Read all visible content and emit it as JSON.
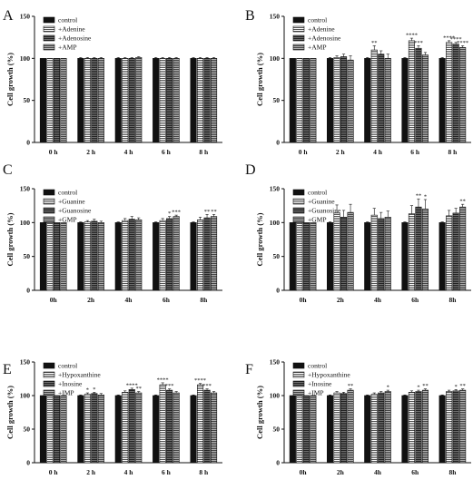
{
  "patterns": {
    "colors": [
      "#111111",
      "#ffffff",
      "#6e6e6e",
      "#b0b0b0"
    ],
    "stripe_colors": [
      null,
      "#555555",
      "#222222",
      "#444444"
    ]
  },
  "chart_data": [
    {
      "panel": "A",
      "type": "bar",
      "ylabel": "Cell growth (%)",
      "ylim": [
        0,
        150
      ],
      "yticks": [
        0,
        50,
        100,
        150
      ],
      "legend_position": "top-left",
      "categories": [
        "0 h",
        "2 h",
        "4 h",
        "6 h",
        "8 h"
      ],
      "series": [
        {
          "name": "control",
          "values": [
            100,
            100,
            100,
            100,
            100
          ],
          "errors": [
            0,
            1,
            1,
            1,
            1
          ],
          "sig": [
            "",
            "",
            "",
            "",
            ""
          ]
        },
        {
          "name": "+Adenine",
          "values": [
            100,
            100,
            100,
            100,
            100
          ],
          "errors": [
            0,
            1,
            1,
            1,
            1
          ],
          "sig": [
            "",
            "",
            "",
            "",
            ""
          ]
        },
        {
          "name": "+Adenosine",
          "values": [
            100,
            100,
            100,
            100,
            100
          ],
          "errors": [
            0,
            1,
            1,
            1,
            1
          ],
          "sig": [
            "",
            "",
            "",
            "",
            ""
          ]
        },
        {
          "name": "+AMP",
          "values": [
            100,
            100,
            101,
            100,
            100
          ],
          "errors": [
            0,
            1,
            1,
            1,
            1
          ],
          "sig": [
            "",
            "",
            "",
            "",
            ""
          ]
        }
      ]
    },
    {
      "panel": "B",
      "type": "bar",
      "ylabel": "Cell growth (%)",
      "ylim": [
        0,
        150
      ],
      "yticks": [
        0,
        50,
        100,
        150
      ],
      "legend_position": "top-left",
      "categories": [
        "0 h",
        "2 h",
        "4 h",
        "6 h",
        "8 h"
      ],
      "series": [
        {
          "name": "control",
          "values": [
            100,
            100,
            100,
            100,
            100
          ],
          "errors": [
            0,
            1,
            1,
            1,
            1
          ],
          "sig": [
            "",
            "",
            "",
            "",
            ""
          ]
        },
        {
          "name": "+Adenine",
          "values": [
            100,
            101,
            110,
            121,
            119
          ],
          "errors": [
            0,
            2,
            5,
            3,
            2
          ],
          "sig": [
            "",
            "",
            "**",
            "****",
            "****"
          ]
        },
        {
          "name": "+Adenosine",
          "values": [
            100,
            102,
            105,
            112,
            117
          ],
          "errors": [
            0,
            3,
            4,
            3,
            2
          ],
          "sig": [
            "",
            "",
            "",
            "***",
            "****"
          ]
        },
        {
          "name": "+AMP",
          "values": [
            100,
            98,
            100,
            104,
            113
          ],
          "errors": [
            0,
            5,
            5,
            3,
            2
          ],
          "sig": [
            "",
            "",
            "",
            "",
            "****"
          ]
        }
      ]
    },
    {
      "panel": "C",
      "type": "bar",
      "ylabel": "Cell growth (%)",
      "ylim": [
        0,
        150
      ],
      "yticks": [
        0,
        50,
        100,
        150
      ],
      "legend_position": "top-left",
      "categories": [
        "0h",
        "2h",
        "4h",
        "6h",
        "8h"
      ],
      "series": [
        {
          "name": "control",
          "values": [
            100,
            100,
            100,
            100,
            100
          ],
          "errors": [
            0,
            1,
            1,
            1,
            1
          ],
          "sig": [
            "",
            "",
            "",
            "",
            ""
          ]
        },
        {
          "name": "+Guanine",
          "values": [
            100,
            101,
            103,
            103,
            104
          ],
          "errors": [
            0,
            2,
            3,
            3,
            4
          ],
          "sig": [
            "",
            "",
            "",
            "",
            ""
          ]
        },
        {
          "name": "+Guanosine",
          "values": [
            100,
            102,
            105,
            106,
            107
          ],
          "errors": [
            0,
            3,
            4,
            3,
            5
          ],
          "sig": [
            "",
            "",
            "",
            "*",
            "**"
          ]
        },
        {
          "name": "+GMP",
          "values": [
            100,
            100,
            104,
            109,
            109
          ],
          "errors": [
            0,
            2,
            3,
            2,
            3
          ],
          "sig": [
            "",
            "",
            "",
            "***",
            "**"
          ]
        }
      ]
    },
    {
      "panel": "D",
      "type": "bar",
      "ylabel": "Cell growth (%)",
      "ylim": [
        0,
        150
      ],
      "yticks": [
        0,
        50,
        100,
        150
      ],
      "legend_position": "top-left",
      "categories": [
        "0h",
        "2h",
        "4h",
        "6h",
        "8h"
      ],
      "series": [
        {
          "name": "control",
          "values": [
            100,
            100,
            100,
            100,
            100
          ],
          "errors": [
            0,
            1,
            1,
            1,
            1
          ],
          "sig": [
            "",
            "",
            "",
            "",
            ""
          ]
        },
        {
          "name": "+Guanine",
          "values": [
            100,
            114,
            111,
            113,
            110
          ],
          "errors": [
            0,
            12,
            10,
            12,
            8
          ],
          "sig": [
            "",
            "",
            "",
            "",
            ""
          ]
        },
        {
          "name": "+Guanosine",
          "values": [
            100,
            108,
            106,
            123,
            114
          ],
          "errors": [
            0,
            10,
            9,
            12,
            7
          ],
          "sig": [
            "",
            "",
            "",
            "**",
            ""
          ]
        },
        {
          "name": "+GMP",
          "values": [
            100,
            115,
            108,
            120,
            123
          ],
          "errors": [
            0,
            12,
            9,
            14,
            4
          ],
          "sig": [
            "",
            "",
            "",
            "*",
            "**"
          ]
        }
      ]
    },
    {
      "panel": "E",
      "type": "bar",
      "ylabel": "Cell growth (%)",
      "ylim": [
        0,
        150
      ],
      "yticks": [
        0,
        50,
        100,
        150
      ],
      "legend_position": "top-left",
      "categories": [
        "0 h",
        "2 h",
        "4 h",
        "6 h",
        "8 h"
      ],
      "series": [
        {
          "name": "control",
          "values": [
            100,
            100,
            100,
            100,
            100
          ],
          "errors": [
            0,
            1,
            1,
            1,
            1
          ],
          "sig": [
            "",
            "",
            "",
            "",
            ""
          ]
        },
        {
          "name": "+Hypoxanthine",
          "values": [
            100,
            102,
            105,
            116,
            116
          ],
          "errors": [
            0,
            2,
            2,
            3,
            2
          ],
          "sig": [
            "",
            "*",
            "",
            "****",
            "****"
          ]
        },
        {
          "name": "+Inosine",
          "values": [
            100,
            103,
            109,
            108,
            108
          ],
          "errors": [
            0,
            2,
            2,
            2,
            2
          ],
          "sig": [
            "",
            "*",
            "****",
            "***",
            "***"
          ]
        },
        {
          "name": "+IMP",
          "values": [
            100,
            101,
            104,
            104,
            104
          ],
          "errors": [
            0,
            2,
            2,
            2,
            2
          ],
          "sig": [
            "",
            "",
            "**",
            "",
            ""
          ]
        }
      ]
    },
    {
      "panel": "F",
      "type": "bar",
      "ylabel": "Cell growth (%)",
      "ylim": [
        0,
        150
      ],
      "yticks": [
        0,
        50,
        100,
        150
      ],
      "legend_position": "top-left",
      "categories": [
        "0h",
        "2h",
        "4h",
        "6h",
        "8h"
      ],
      "series": [
        {
          "name": "control",
          "values": [
            100,
            100,
            100,
            100,
            100
          ],
          "errors": [
            0,
            1,
            1,
            1,
            1
          ],
          "sig": [
            "",
            "",
            "",
            "",
            ""
          ]
        },
        {
          "name": "+Hypoxanthine",
          "values": [
            100,
            104,
            102,
            105,
            106
          ],
          "errors": [
            0,
            2,
            2,
            2,
            2
          ],
          "sig": [
            "",
            "",
            "",
            "",
            ""
          ]
        },
        {
          "name": "+Inosine",
          "values": [
            100,
            103,
            104,
            106,
            107
          ],
          "errors": [
            0,
            2,
            2,
            2,
            2
          ],
          "sig": [
            "",
            "",
            "",
            "*",
            "*"
          ]
        },
        {
          "name": "+IMP",
          "values": [
            100,
            108,
            106,
            108,
            108
          ],
          "errors": [
            0,
            2,
            2,
            2,
            2
          ],
          "sig": [
            "",
            "**",
            "*",
            "**",
            "**"
          ]
        }
      ]
    }
  ]
}
